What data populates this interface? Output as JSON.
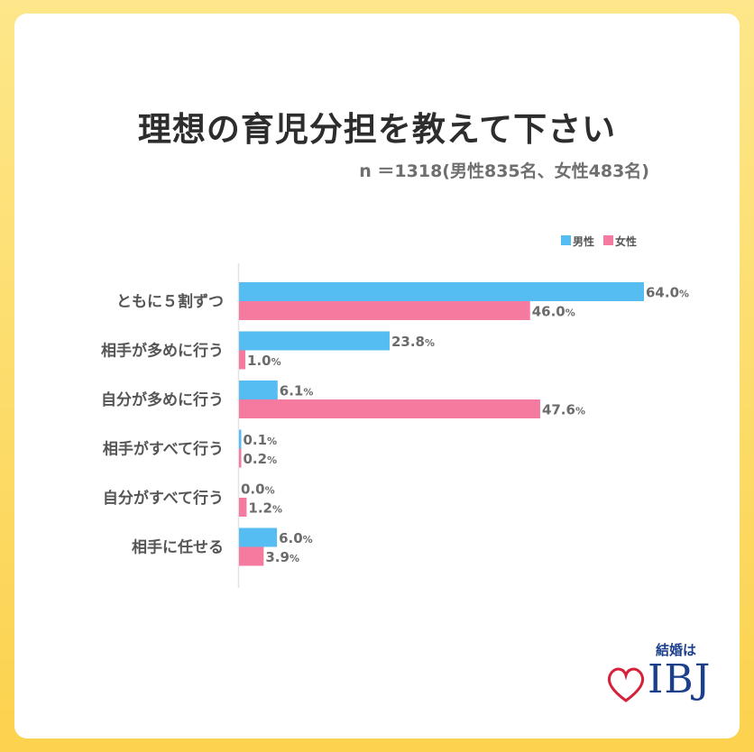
{
  "header": {
    "title": "理想の育児分担を教えて下さい",
    "subtitle": "n ＝1318(男性835名、女性483名)"
  },
  "chart_data": {
    "type": "bar",
    "orientation": "horizontal",
    "categories": [
      "ともに５割ずつ",
      "相手が多めに行う",
      "自分が多めに行う",
      "相手がすべて行う",
      "自分がすべて行う",
      "相手に任せる"
    ],
    "series": [
      {
        "name": "男性",
        "color": "#56bdf2",
        "values": [
          64.0,
          23.8,
          6.1,
          0.1,
          0.0,
          6.0
        ],
        "labels": [
          "64.0",
          "23.8",
          "6.1",
          "0.1",
          "0.0",
          "6.0"
        ]
      },
      {
        "name": "女性",
        "color": "#f47aa0",
        "values": [
          46.0,
          1.0,
          47.6,
          0.2,
          1.2,
          3.9
        ],
        "labels": [
          "46.0",
          "1.0",
          "47.6",
          "0.2",
          "1.2",
          "3.9"
        ]
      }
    ],
    "unit": "%",
    "xlim": [
      0,
      70
    ],
    "grid": false,
    "legend_position": "top-right"
  },
  "logo": {
    "tagline": "結婚は",
    "brand": "IBJ",
    "heart_color": "#d6213a",
    "brand_color": "#1c3f8c"
  }
}
